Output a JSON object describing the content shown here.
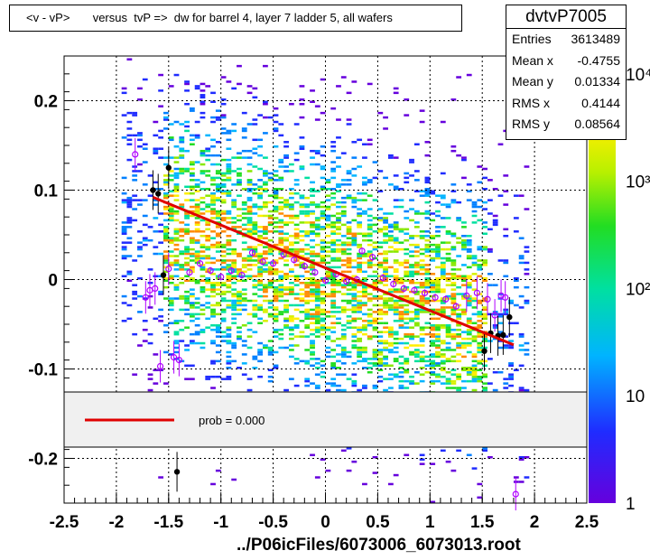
{
  "title": "<v - vP>       versus  tvP =>  dw for barrel 4, layer 7 ladder 5, all wafers",
  "stats": {
    "name": "dvtvP7005",
    "rows": [
      {
        "label": "Entries",
        "value": "3613489"
      },
      {
        "label": "Mean x",
        "value": "-0.4755"
      },
      {
        "label": "Mean y",
        "value": "0.01334"
      },
      {
        "label": "RMS x",
        "value": "0.4144"
      },
      {
        "label": "RMS y",
        "value": "0.08564"
      }
    ]
  },
  "footer": "../P06icFiles/6073006_6073013.root",
  "colors": {
    "fit_line": "#e00000",
    "profile_markers": "#b000ff",
    "profile_points": "#000000",
    "legend_bg": "#f0f0f0"
  },
  "chart_data": {
    "type": "heatmap",
    "xlim": [
      -2.5,
      2.5
    ],
    "ylim": [
      -0.25,
      0.25
    ],
    "x_ticks": [
      "-2.5",
      "-2",
      "-1.5",
      "-1",
      "-0.5",
      "0",
      "0.5",
      "1",
      "1.5",
      "2",
      "2.5"
    ],
    "y_ticks": [
      "-0.2",
      "-0.1",
      "0",
      "0.1",
      "0.2"
    ],
    "grid": true,
    "colorbar": {
      "scale": "log",
      "labels": [
        "1",
        "10",
        "10²",
        "10³",
        "10⁴"
      ]
    },
    "legend": {
      "entries": [
        {
          "label": "prob = 0.000"
        }
      ]
    },
    "fit_line": {
      "x": [
        -1.65,
        1.8
      ],
      "y": [
        0.092,
        -0.073
      ]
    },
    "profile_points": [
      {
        "x": -1.65,
        "y": 0.1
      },
      {
        "x": -1.6,
        "y": 0.096
      },
      {
        "x": -1.55,
        "y": 0.005
      },
      {
        "x": -1.5,
        "y": 0.125
      },
      {
        "x": -1.42,
        "y": -0.215
      },
      {
        "x": 1.52,
        "y": -0.08
      },
      {
        "x": 1.58,
        "y": -0.06
      },
      {
        "x": 1.65,
        "y": -0.063
      },
      {
        "x": 1.7,
        "y": -0.062
      },
      {
        "x": 1.76,
        "y": -0.042
      }
    ],
    "profile_markers": [
      {
        "x": -1.82,
        "y": 0.14
      },
      {
        "x": -1.72,
        "y": -0.02
      },
      {
        "x": -1.68,
        "y": -0.012
      },
      {
        "x": -1.63,
        "y": -0.01
      },
      {
        "x": -1.58,
        "y": -0.097
      },
      {
        "x": -1.5,
        "y": 0.012
      },
      {
        "x": -1.45,
        "y": -0.087
      },
      {
        "x": -1.4,
        "y": -0.09
      },
      {
        "x": -1.3,
        "y": 0.008
      },
      {
        "x": -1.2,
        "y": 0.018
      },
      {
        "x": -1.1,
        "y": 0.01
      },
      {
        "x": -1.0,
        "y": 0.003
      },
      {
        "x": -0.9,
        "y": 0.01
      },
      {
        "x": -0.8,
        "y": 0.005
      },
      {
        "x": -0.7,
        "y": 0.03
      },
      {
        "x": -0.6,
        "y": 0.02
      },
      {
        "x": -0.5,
        "y": 0.018
      },
      {
        "x": -0.4,
        "y": 0.028
      },
      {
        "x": -0.3,
        "y": 0.022
      },
      {
        "x": -0.2,
        "y": 0.015
      },
      {
        "x": -0.1,
        "y": 0.008
      },
      {
        "x": 0.0,
        "y": -0.001
      },
      {
        "x": 0.1,
        "y": 0.006
      },
      {
        "x": 0.2,
        "y": -0.002
      },
      {
        "x": 0.3,
        "y": 0.0
      },
      {
        "x": 0.35,
        "y": 0.032
      },
      {
        "x": 0.45,
        "y": 0.025
      },
      {
        "x": 0.55,
        "y": 0.002
      },
      {
        "x": 0.65,
        "y": -0.005
      },
      {
        "x": 0.75,
        "y": -0.01
      },
      {
        "x": 0.85,
        "y": -0.012
      },
      {
        "x": 0.95,
        "y": -0.015
      },
      {
        "x": 1.05,
        "y": -0.02
      },
      {
        "x": 1.15,
        "y": -0.022
      },
      {
        "x": 1.25,
        "y": -0.03
      },
      {
        "x": 1.35,
        "y": -0.018
      },
      {
        "x": 1.45,
        "y": -0.015
      },
      {
        "x": 1.55,
        "y": -0.022
      },
      {
        "x": 1.62,
        "y": -0.04
      },
      {
        "x": 1.68,
        "y": -0.018
      },
      {
        "x": 1.72,
        "y": -0.02
      },
      {
        "x": 1.82,
        "y": -0.24
      }
    ]
  }
}
